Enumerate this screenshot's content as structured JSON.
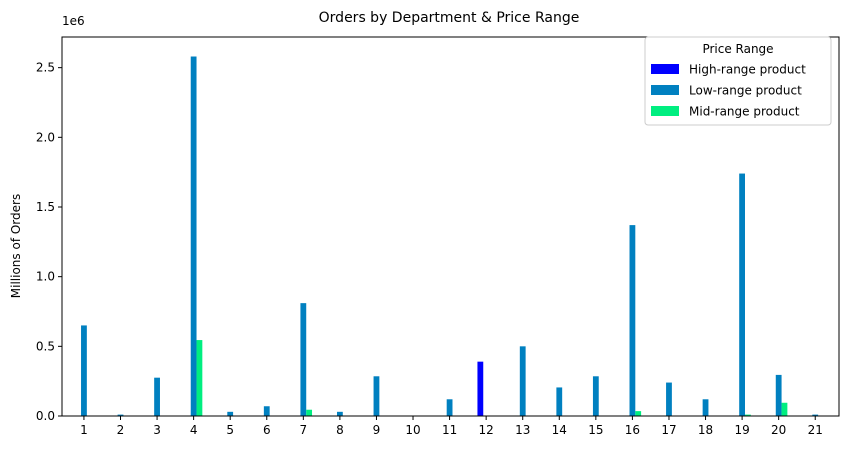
{
  "chart_data": {
    "type": "bar",
    "title": "Orders by Department & Price Range",
    "xlabel": "",
    "ylabel": "Millions of Orders",
    "y_offset_text": "1e6",
    "ylim": [
      0,
      2720000
    ],
    "y_ticks": [
      0,
      500000,
      1000000,
      1500000,
      2000000,
      2500000
    ],
    "y_tick_labels": [
      "0.0",
      "0.5",
      "1.0",
      "1.5",
      "2.0",
      "2.5"
    ],
    "categories": [
      "1",
      "2",
      "3",
      "4",
      "5",
      "6",
      "7",
      "8",
      "9",
      "10",
      "11",
      "12",
      "13",
      "14",
      "15",
      "16",
      "17",
      "18",
      "19",
      "20",
      "21"
    ],
    "legend": {
      "title": "Price Range",
      "placement": "top-right"
    },
    "grid": false,
    "series": [
      {
        "name": "High-range product",
        "color": "#0000ff",
        "values": [
          0,
          0,
          0,
          0,
          0,
          0,
          0,
          0,
          0,
          0,
          0,
          390000,
          0,
          0,
          0,
          0,
          0,
          0,
          0,
          0,
          0
        ]
      },
      {
        "name": "Low-range product",
        "color": "#0080c0",
        "values": [
          650000,
          10000,
          275000,
          2580000,
          30000,
          70000,
          810000,
          30000,
          285000,
          0,
          120000,
          0,
          500000,
          205000,
          285000,
          1370000,
          240000,
          120000,
          1740000,
          295000,
          10000
        ]
      },
      {
        "name": "Mid-range product",
        "color": "#00ee80",
        "values": [
          0,
          0,
          0,
          545000,
          0,
          0,
          45000,
          0,
          0,
          0,
          0,
          0,
          0,
          0,
          0,
          35000,
          0,
          0,
          10000,
          95000,
          0
        ]
      }
    ]
  }
}
